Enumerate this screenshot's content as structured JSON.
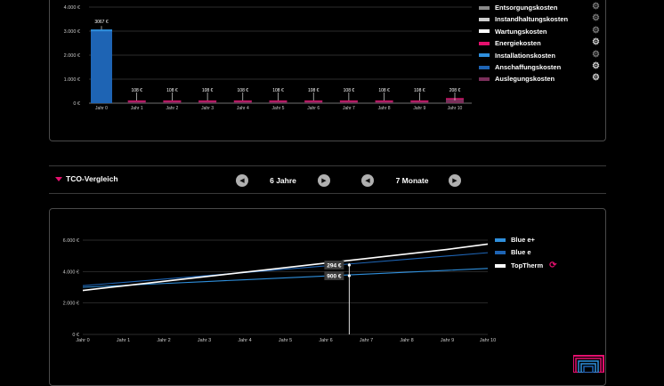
{
  "top_chart": {
    "y_ticks": [
      "4.000 €",
      "3.000 €",
      "2.000 €",
      "1.000 €",
      "0 €"
    ],
    "categories": [
      "Jahr 0",
      "Jahr 1",
      "Jahr 2",
      "Jahr 3",
      "Jahr 4",
      "Jahr 5",
      "Jahr 6",
      "Jahr 7",
      "Jahr 8",
      "Jahr 9",
      "Jahr 10"
    ],
    "value_labels": [
      "3067 €",
      "108 €",
      "108 €",
      "108 €",
      "108 €",
      "108 €",
      "108 €",
      "108 €",
      "108 €",
      "108 €",
      "208 €"
    ]
  },
  "legend_costs": {
    "items": [
      {
        "label": "Entsorgungskosten",
        "color": "#8a8a8a",
        "gear": "gear-icon",
        "gear_active": false
      },
      {
        "label": "Instandhaltungskosten",
        "color": "#cfcfcf",
        "gear": "gear-icon",
        "gear_active": false
      },
      {
        "label": "Wartungskosten",
        "color": "#ffffff",
        "gear": "gear-icon",
        "gear_active": false
      },
      {
        "label": "Energiekosten",
        "color": "#e4106e",
        "gear": "gear-icon",
        "gear_active": true
      },
      {
        "label": "Installationskosten",
        "color": "#2f8fdc",
        "gear": "gear-icon",
        "gear_active": false
      },
      {
        "label": "Anschaffungskosten",
        "color": "#1e64b4",
        "gear": "gear-icon",
        "gear_active": true
      },
      {
        "label": "Auslegungskosten",
        "color": "#7a2f5a",
        "gear": "gear-icon",
        "gear_active": true
      }
    ]
  },
  "tco": {
    "title": "TCO-Vergleich",
    "years_value": "6 Jahre",
    "months_value": "7 Monate"
  },
  "chart_data": [
    {
      "type": "bar",
      "categories": [
        "Jahr 0",
        "Jahr 1",
        "Jahr 2",
        "Jahr 3",
        "Jahr 4",
        "Jahr 5",
        "Jahr 6",
        "Jahr 7",
        "Jahr 8",
        "Jahr 9",
        "Jahr 10"
      ],
      "values": [
        3067,
        108,
        108,
        108,
        108,
        108,
        108,
        108,
        108,
        108,
        208
      ],
      "ylim": [
        0,
        4000
      ],
      "grid": true
    },
    {
      "type": "line",
      "x": [
        "Jahr 0",
        "Jahr 1",
        "Jahr 2",
        "Jahr 3",
        "Jahr 4",
        "Jahr 5",
        "Jahr 6",
        "Jahr 7",
        "Jahr 8",
        "Jahr 9",
        "Jahr 10"
      ],
      "series": [
        {
          "name": "Blue e+",
          "color": "#2f8fdc",
          "values": [
            3000,
            3120,
            3240,
            3360,
            3480,
            3600,
            3720,
            3840,
            3960,
            4080,
            4200
          ]
        },
        {
          "name": "Blue e",
          "color": "#1e64b4",
          "values": [
            3100,
            3310,
            3520,
            3730,
            3940,
            4150,
            4360,
            4570,
            4780,
            4990,
            5200
          ]
        },
        {
          "name": "TopTherm",
          "color": "#ffffff",
          "values": [
            2800,
            3090,
            3380,
            3670,
            3960,
            4250,
            4540,
            4830,
            5120,
            5410,
            5750
          ]
        }
      ],
      "y_ticks": [
        "6.000 €",
        "4.000 €",
        "2.000 €",
        "0 €"
      ],
      "ylim": [
        0,
        6000
      ],
      "grid": true,
      "annotations": [
        "294 €",
        "900 €"
      ]
    }
  ]
}
